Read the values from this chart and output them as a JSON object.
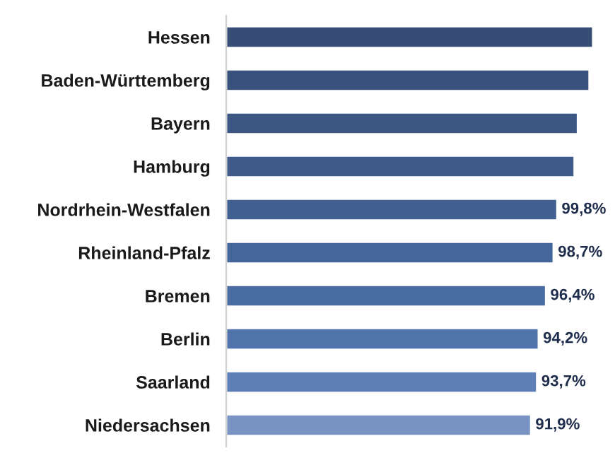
{
  "chart_data": {
    "type": "bar",
    "orientation": "horizontal",
    "categories": [
      "Hessen",
      "Baden-Württemberg",
      "Bayern",
      "Hamburg",
      "Nordrhein-Westfalen",
      "Rheinland-Pfalz",
      "Bremen",
      "Berlin",
      "Saarland",
      "Niedersachsen"
    ],
    "values": [
      110.6,
      109.5,
      106.0,
      105.0,
      99.8,
      98.7,
      96.4,
      94.2,
      93.7,
      91.9
    ],
    "value_labels": [
      null,
      null,
      null,
      null,
      "99,8%",
      "98,7%",
      "96,4%",
      "94,2%",
      "93,7%",
      "91,9%"
    ],
    "colors": [
      "#2c4a80",
      "#2e4f88",
      "#30548f",
      "#325896",
      "#345d9e",
      "#3663a8",
      "#3a68b2",
      "#4270bb",
      "#4f7cc4",
      "#6d8fcf"
    ],
    "grid": false
  }
}
